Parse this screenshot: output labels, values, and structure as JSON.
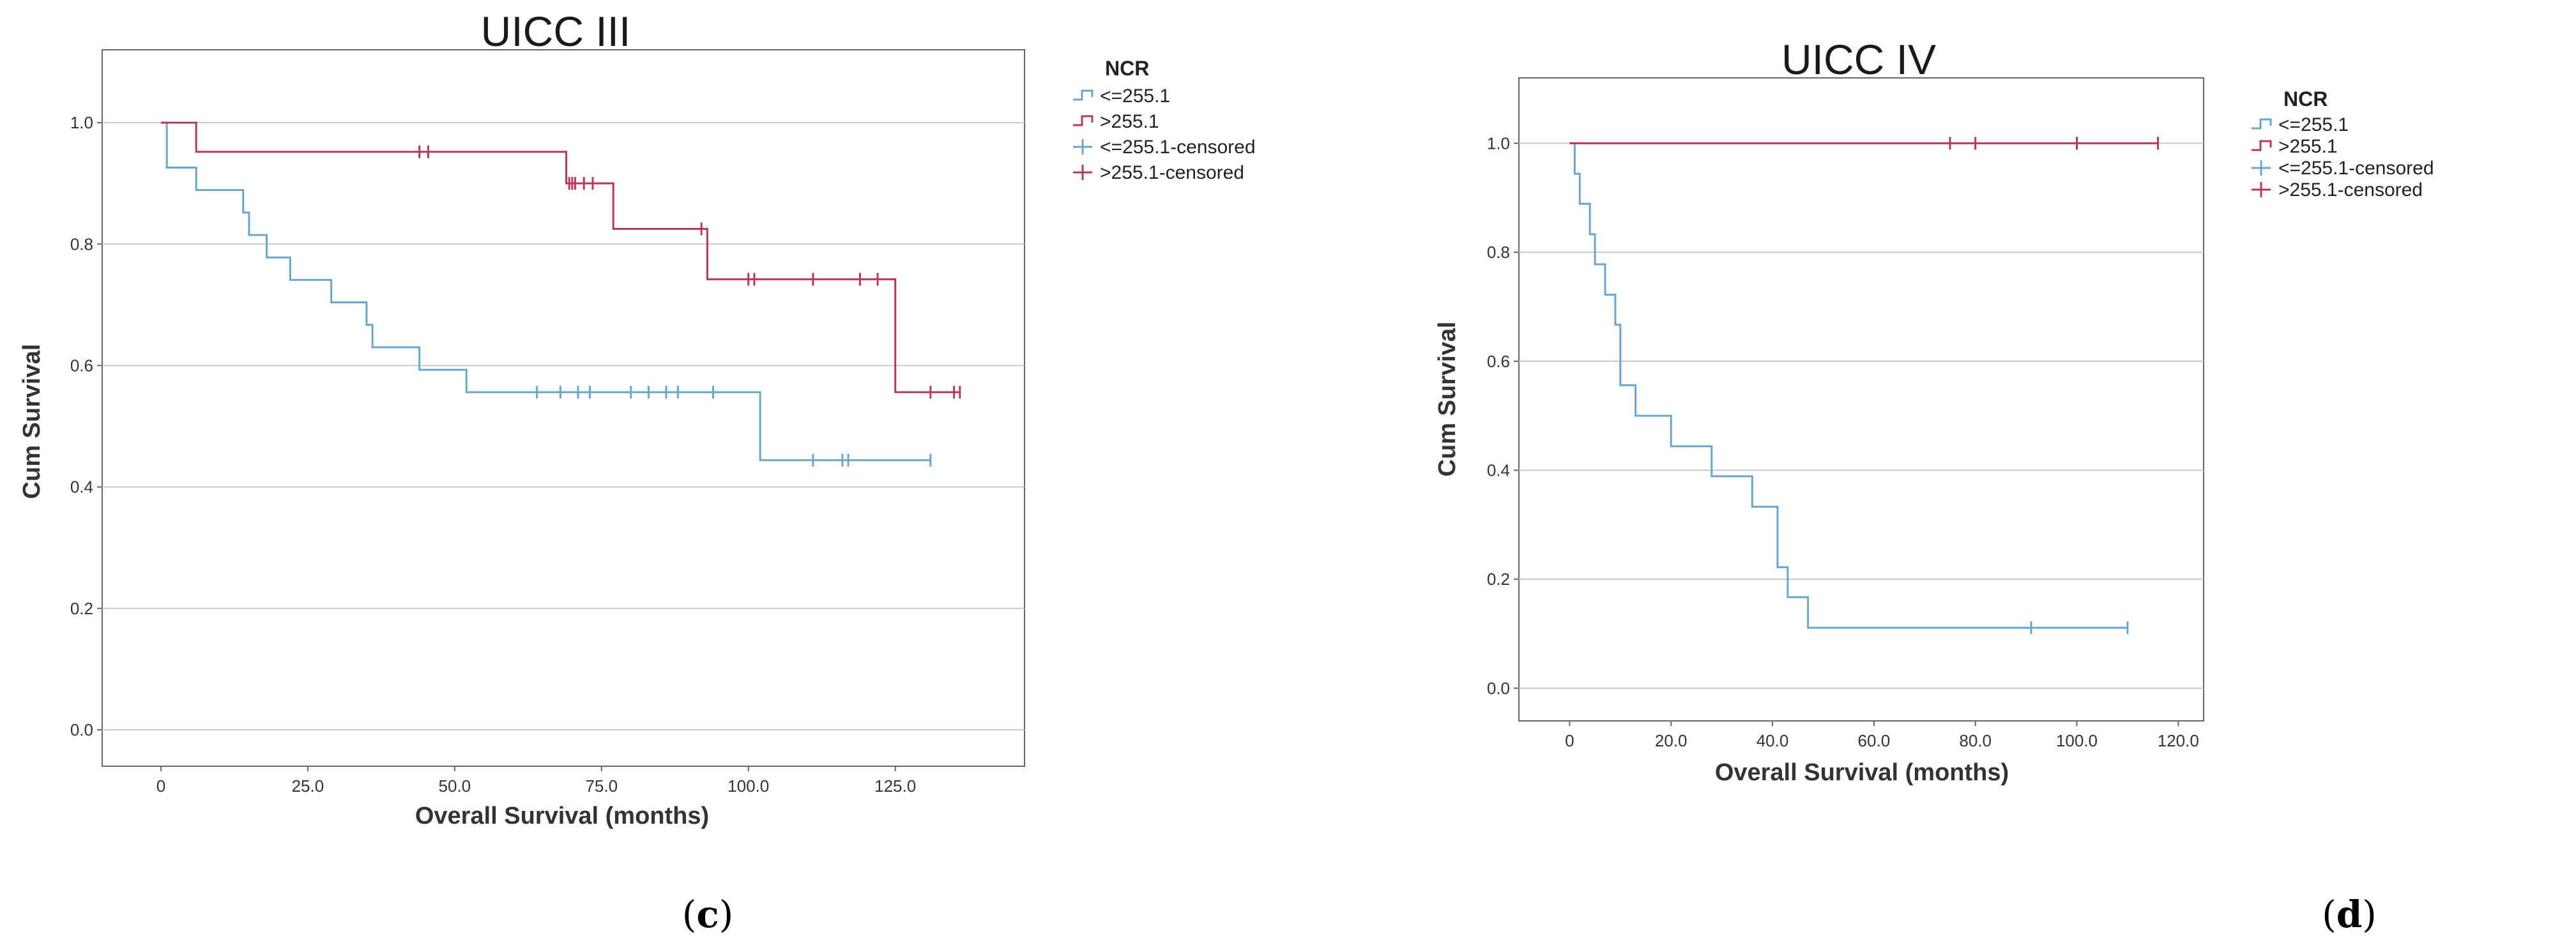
{
  "chart_data": [
    {
      "type": "line",
      "title": "UICC III",
      "xlabel": "Overall Survival (months)",
      "ylabel": "Cum Survival",
      "xlim": [
        -10,
        147
      ],
      "ylim": [
        -0.06,
        1.12
      ],
      "xticks": [
        "0",
        "25.0",
        "50.0",
        "75.0",
        "100.0",
        "125.0"
      ],
      "xtick_values": [
        0,
        25,
        50,
        75,
        100,
        125
      ],
      "yticks": [
        "0.0",
        "0.2",
        "0.4",
        "0.6",
        "0.8",
        "1.0"
      ],
      "ytick_values": [
        0,
        0.2,
        0.4,
        0.6,
        0.8,
        1.0
      ],
      "grid": "horizontal",
      "legend_title": "NCR",
      "legend_position": "right",
      "panel_label_open": "(",
      "panel_label_letter": "c",
      "panel_label_close": ")",
      "series": [
        {
          "name": "<=255.1",
          "color": "#6aa5cc",
          "steps": [
            [
              0,
              1.0
            ],
            [
              1,
              0.926
            ],
            [
              6,
              0.889
            ],
            [
              14,
              0.852
            ],
            [
              15,
              0.815
            ],
            [
              18,
              0.778
            ],
            [
              22,
              0.741
            ],
            [
              29,
              0.704
            ],
            [
              35,
              0.667
            ],
            [
              36,
              0.63
            ],
            [
              44,
              0.593
            ],
            [
              52,
              0.556
            ],
            [
              102,
              0.444
            ],
            [
              131,
              0.444
            ]
          ]
        },
        {
          "name": ">255.1",
          "color": "#b8385c",
          "steps": [
            [
              0,
              1.0
            ],
            [
              6,
              0.952
            ],
            [
              69,
              0.9
            ],
            [
              77,
              0.825
            ],
            [
              93,
              0.742
            ],
            [
              125,
              0.556
            ],
            [
              136,
              0.556
            ]
          ]
        }
      ],
      "censored": [
        {
          "name": "<=255.1-censored",
          "color": "#6aa5cc",
          "points": [
            [
              64,
              0.556
            ],
            [
              68,
              0.556
            ],
            [
              71,
              0.556
            ],
            [
              73,
              0.556
            ],
            [
              80,
              0.556
            ],
            [
              83,
              0.556
            ],
            [
              86,
              0.556
            ],
            [
              88,
              0.556
            ],
            [
              94,
              0.556
            ],
            [
              111,
              0.444
            ],
            [
              116,
              0.444
            ],
            [
              117,
              0.444
            ],
            [
              131,
              0.444
            ]
          ]
        },
        {
          "name": ">255.1-censored",
          "color": "#b8385c",
          "points": [
            [
              44,
              0.952
            ],
            [
              45.5,
              0.952
            ],
            [
              69.5,
              0.9
            ],
            [
              70,
              0.9
            ],
            [
              70.5,
              0.9
            ],
            [
              72,
              0.9
            ],
            [
              73.5,
              0.9
            ],
            [
              92,
              0.825
            ],
            [
              100,
              0.742
            ],
            [
              101,
              0.742
            ],
            [
              111,
              0.742
            ],
            [
              119,
              0.742
            ],
            [
              122,
              0.742
            ],
            [
              131,
              0.556
            ],
            [
              135,
              0.556
            ],
            [
              136,
              0.556
            ]
          ]
        }
      ]
    },
    {
      "type": "line",
      "title": "UICC IV",
      "xlabel": "Overall Survival (months)",
      "ylabel": "Cum Survival",
      "xlim": [
        -10,
        125
      ],
      "ylim": [
        -0.06,
        1.12
      ],
      "xticks": [
        "0",
        "20.0",
        "40.0",
        "60.0",
        "80.0",
        "100.0",
        "120.0"
      ],
      "xtick_values": [
        0,
        20,
        40,
        60,
        80,
        100,
        120
      ],
      "yticks": [
        "0.0",
        "0.2",
        "0.4",
        "0.6",
        "0.8",
        "1.0"
      ],
      "ytick_values": [
        0,
        0.2,
        0.4,
        0.6,
        0.8,
        1.0
      ],
      "grid": "horizontal",
      "legend_title": "NCR",
      "legend_position": "right",
      "panel_label_open": "(",
      "panel_label_letter": "d",
      "panel_label_close": ")",
      "series": [
        {
          "name": "<=255.1",
          "color": "#6aa5cc",
          "steps": [
            [
              0,
              1.0
            ],
            [
              1,
              0.944
            ],
            [
              2,
              0.889
            ],
            [
              4,
              0.833
            ],
            [
              5,
              0.778
            ],
            [
              7,
              0.722
            ],
            [
              9,
              0.667
            ],
            [
              10,
              0.556
            ],
            [
              13,
              0.5
            ],
            [
              20,
              0.444
            ],
            [
              28,
              0.389
            ],
            [
              36,
              0.333
            ],
            [
              41,
              0.222
            ],
            [
              43,
              0.167
            ],
            [
              47,
              0.111
            ],
            [
              110,
              0.111
            ]
          ]
        },
        {
          "name": ">255.1",
          "color": "#b8385c",
          "steps": [
            [
              0,
              1.0
            ],
            [
              116,
              1.0
            ]
          ]
        }
      ],
      "censored": [
        {
          "name": "<=255.1-censored",
          "color": "#6aa5cc",
          "points": [
            [
              91,
              0.111
            ],
            [
              110,
              0.111
            ]
          ]
        },
        {
          "name": ">255.1-censored",
          "color": "#b8385c",
          "points": [
            [
              75,
              1.0
            ],
            [
              80,
              1.0
            ],
            [
              100,
              1.0
            ],
            [
              116,
              1.0
            ]
          ]
        }
      ]
    }
  ]
}
